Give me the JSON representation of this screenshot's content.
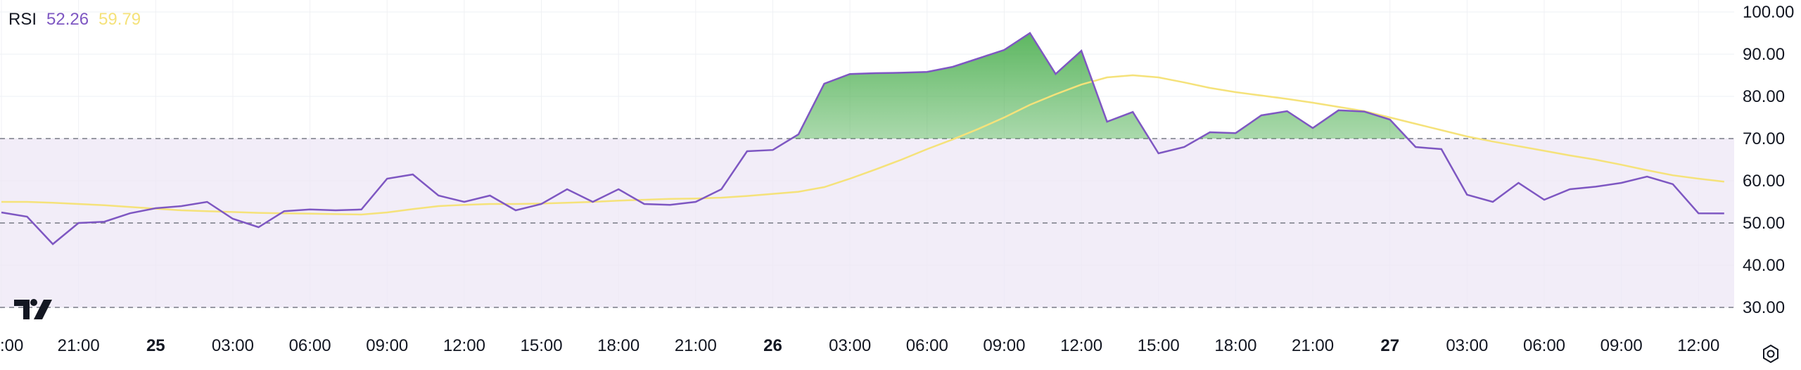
{
  "legend": {
    "name": "RSI",
    "rsi_value": "52.26",
    "ma_value": "59.79"
  },
  "colors": {
    "rsi": "#7e57c2",
    "ma": "#f5e27a",
    "band": "#ede7f6",
    "overbought": "#4caf50"
  },
  "icons": {
    "logo": "tradingview-logo-icon",
    "settings": "settings-icon"
  },
  "chart_data": {
    "type": "line",
    "ylim": [
      30,
      100
    ],
    "y_ticks": [
      "100.00",
      "90.00",
      "80.00",
      "70.00",
      "60.00",
      "50.00",
      "40.00",
      "30.00"
    ],
    "bands": {
      "upper": 70,
      "middle": 50,
      "lower": 30
    },
    "x_ticks": [
      {
        "label": ":00",
        "index": 0,
        "bold": false
      },
      {
        "label": "21:00",
        "index": 3,
        "bold": false
      },
      {
        "label": "25",
        "index": 6,
        "bold": true
      },
      {
        "label": "03:00",
        "index": 9,
        "bold": false
      },
      {
        "label": "06:00",
        "index": 12,
        "bold": false
      },
      {
        "label": "09:00",
        "index": 15,
        "bold": false
      },
      {
        "label": "12:00",
        "index": 18,
        "bold": false
      },
      {
        "label": "15:00",
        "index": 21,
        "bold": false
      },
      {
        "label": "18:00",
        "index": 24,
        "bold": false
      },
      {
        "label": "21:00",
        "index": 27,
        "bold": false
      },
      {
        "label": "26",
        "index": 30,
        "bold": true
      },
      {
        "label": "03:00",
        "index": 33,
        "bold": false
      },
      {
        "label": "06:00",
        "index": 36,
        "bold": false
      },
      {
        "label": "09:00",
        "index": 39,
        "bold": false
      },
      {
        "label": "12:00",
        "index": 42,
        "bold": false
      },
      {
        "label": "15:00",
        "index": 45,
        "bold": false
      },
      {
        "label": "18:00",
        "index": 48,
        "bold": false
      },
      {
        "label": "21:00",
        "index": 51,
        "bold": false
      },
      {
        "label": "27",
        "index": 54,
        "bold": true
      },
      {
        "label": "03:00",
        "index": 57,
        "bold": false
      },
      {
        "label": "06:00",
        "index": 60,
        "bold": false
      },
      {
        "label": "09:00",
        "index": 63,
        "bold": false
      },
      {
        "label": "12:00",
        "index": 66,
        "bold": false
      }
    ],
    "series": [
      {
        "values": [
          52.5,
          51.5,
          45.0,
          50.0,
          50.3,
          52.3,
          53.5,
          54.0,
          55.0,
          51.0,
          49.0,
          52.8,
          53.2,
          53.0,
          53.2,
          60.5,
          61.5,
          56.5,
          55.0,
          56.5,
          53.0,
          54.5,
          58.0,
          55.0,
          58.0,
          54.5,
          54.3,
          55.0,
          58.0,
          67.0,
          67.3,
          71.0,
          83.0,
          85.3,
          85.5,
          85.6,
          85.8,
          87.0,
          89.0,
          91.0,
          95.0,
          85.3,
          90.8,
          74.0,
          76.3,
          66.5,
          68.0,
          71.5,
          71.3,
          75.5,
          76.5,
          72.5,
          76.7,
          76.4,
          74.5,
          68.0,
          67.5,
          56.7,
          55.0,
          59.5,
          55.5,
          58.0,
          58.6,
          59.5,
          61.0,
          59.2,
          52.3,
          52.26
        ]
      },
      {
        "values": [
          55.0,
          55.0,
          54.8,
          54.5,
          54.2,
          53.8,
          53.4,
          53.0,
          52.8,
          52.6,
          52.4,
          52.3,
          52.2,
          52.1,
          52.0,
          52.5,
          53.3,
          54.0,
          54.3,
          54.5,
          54.5,
          54.6,
          54.8,
          55.0,
          55.3,
          55.5,
          55.7,
          55.8,
          56.0,
          56.4,
          56.9,
          57.4,
          58.5,
          60.5,
          62.7,
          65.0,
          67.5,
          69.8,
          72.3,
          75.0,
          78.0,
          80.5,
          82.8,
          84.5,
          85.0,
          84.5,
          83.3,
          82.0,
          81.0,
          80.2,
          79.4,
          78.5,
          77.5,
          76.5,
          75.0,
          73.5,
          72.0,
          70.5,
          69.3,
          68.2,
          67.1,
          66.0,
          65.0,
          63.8,
          62.5,
          61.3,
          60.5,
          59.79
        ]
      }
    ]
  }
}
